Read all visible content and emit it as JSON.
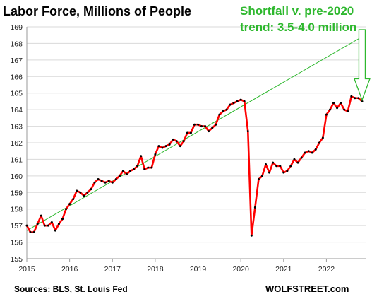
{
  "chart_data": {
    "type": "line",
    "title": "Labor Force, Millions of People",
    "annotation": [
      "Shortfall v. pre-2020",
      "trend: 3.5-4.0 million"
    ],
    "source": "Sources: BLS, St. Louis Fed",
    "credit": "WOLFSTREET.com",
    "xlabel": "",
    "ylabel": "",
    "x_ticks": [
      "2015",
      "2016",
      "2017",
      "2018",
      "2019",
      "2020",
      "2021",
      "2022"
    ],
    "xlim": [
      "2015-01",
      "2022-12"
    ],
    "y_ticks": [
      "155",
      "156",
      "157",
      "158",
      "159",
      "160",
      "161",
      "162",
      "163",
      "164",
      "165",
      "166",
      "167",
      "168",
      "169"
    ],
    "ylim": [
      155,
      169
    ],
    "grid": "horizontal",
    "colors": {
      "series": "#ff0000",
      "markers": "#000000",
      "trend": "#2eb82e",
      "annotation": "#2eb82e",
      "grid": "#d9d9d9"
    },
    "series": [
      {
        "x": [
          "2015-01",
          "2015-02",
          "2015-03",
          "2015-04",
          "2015-05",
          "2015-06",
          "2015-07",
          "2015-08",
          "2015-09",
          "2015-10",
          "2015-11",
          "2015-12",
          "2016-01",
          "2016-02",
          "2016-03",
          "2016-04",
          "2016-05",
          "2016-06",
          "2016-07",
          "2016-08",
          "2016-09",
          "2016-10",
          "2016-11",
          "2016-12",
          "2017-01",
          "2017-02",
          "2017-03",
          "2017-04",
          "2017-05",
          "2017-06",
          "2017-07",
          "2017-08",
          "2017-09",
          "2017-10",
          "2017-11",
          "2017-12",
          "2018-01",
          "2018-02",
          "2018-03",
          "2018-04",
          "2018-05",
          "2018-06",
          "2018-07",
          "2018-08",
          "2018-09",
          "2018-10",
          "2018-11",
          "2018-12",
          "2019-01",
          "2019-02",
          "2019-03",
          "2019-04",
          "2019-05",
          "2019-06",
          "2019-07",
          "2019-08",
          "2019-09",
          "2019-10",
          "2019-11",
          "2019-12",
          "2020-01",
          "2020-02",
          "2020-03",
          "2020-04",
          "2020-05",
          "2020-06",
          "2020-07",
          "2020-08",
          "2020-09",
          "2020-10",
          "2020-11",
          "2020-12",
          "2021-01",
          "2021-02",
          "2021-03",
          "2021-04",
          "2021-05",
          "2021-06",
          "2021-07",
          "2021-08",
          "2021-09",
          "2021-10",
          "2021-11",
          "2021-12",
          "2022-01",
          "2022-02",
          "2022-03",
          "2022-04",
          "2022-05",
          "2022-06",
          "2022-07",
          "2022-08",
          "2022-09",
          "2022-10",
          "2022-11"
        ],
        "values": [
          157.0,
          156.6,
          156.6,
          157.1,
          157.6,
          157.0,
          157.0,
          157.2,
          156.7,
          157.1,
          157.4,
          158.0,
          158.3,
          158.6,
          159.1,
          159.0,
          158.8,
          159.0,
          159.2,
          159.6,
          159.8,
          159.7,
          159.6,
          159.7,
          159.6,
          159.8,
          160.0,
          160.3,
          160.1,
          160.3,
          160.4,
          160.6,
          161.2,
          160.4,
          160.5,
          160.5,
          161.3,
          161.8,
          161.7,
          161.8,
          161.9,
          162.2,
          162.1,
          161.8,
          162.1,
          162.6,
          162.6,
          163.1,
          163.1,
          163.0,
          163.0,
          162.7,
          162.9,
          163.1,
          163.7,
          163.9,
          164.0,
          164.3,
          164.4,
          164.5,
          164.6,
          164.5,
          162.7,
          156.4,
          158.1,
          159.8,
          160.0,
          160.7,
          160.2,
          160.8,
          160.6,
          160.6,
          160.2,
          160.3,
          160.6,
          161.0,
          160.8,
          161.1,
          161.4,
          161.5,
          161.4,
          161.6,
          162.0,
          162.3,
          163.7,
          164.0,
          164.4,
          164.1,
          164.4,
          164.0,
          163.9,
          164.8,
          164.7,
          164.7,
          164.5
        ]
      }
    ],
    "trend_line": {
      "x": [
        "2015-01",
        "2022-11"
      ],
      "y": [
        156.7,
        168.4
      ]
    }
  }
}
